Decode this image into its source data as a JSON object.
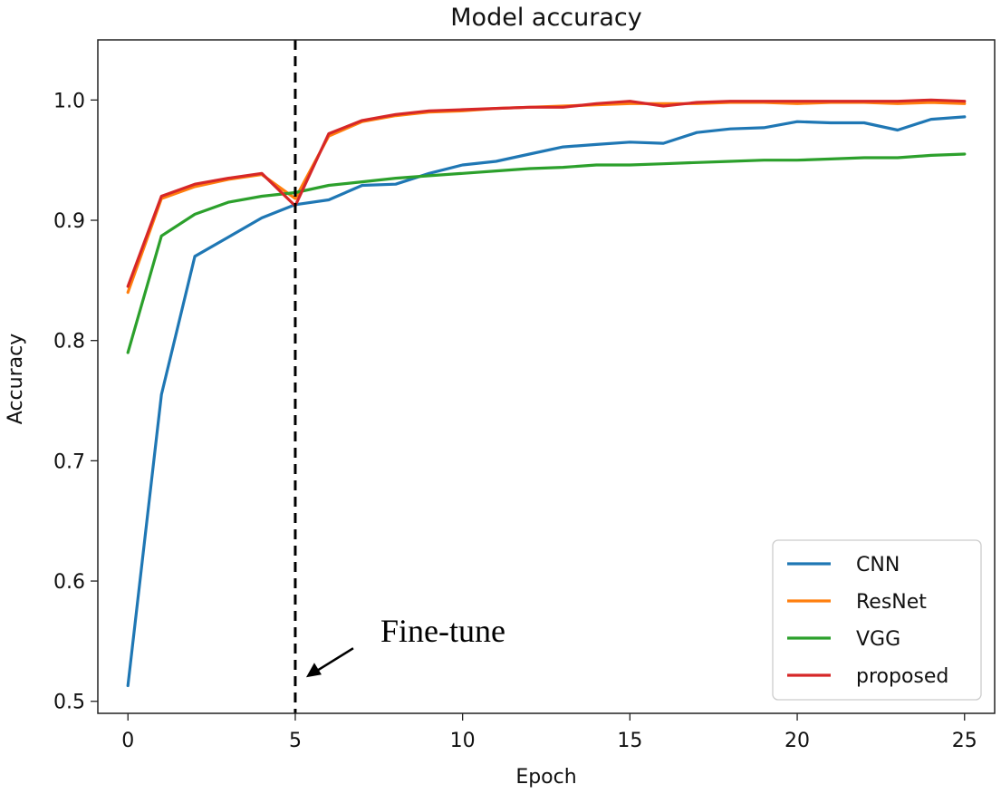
{
  "chart_data": {
    "type": "line",
    "title": "Model accuracy",
    "xlabel": "Epoch",
    "ylabel": "Accuracy",
    "xlim": [
      -0.9,
      25.9
    ],
    "ylim": [
      0.49,
      1.05
    ],
    "xticks": [
      0,
      5,
      10,
      15,
      20,
      25
    ],
    "yticks": [
      0.5,
      0.6,
      0.7,
      0.8,
      0.9,
      1.0
    ],
    "xtick_labels": [
      "0",
      "5",
      "10",
      "15",
      "20",
      "25"
    ],
    "ytick_labels": [
      "0.5",
      "0.6",
      "0.7",
      "0.8",
      "0.9",
      "1.0"
    ],
    "x": [
      0,
      1,
      2,
      3,
      4,
      5,
      6,
      7,
      8,
      9,
      10,
      11,
      12,
      13,
      14,
      15,
      16,
      17,
      18,
      19,
      20,
      21,
      22,
      23,
      24,
      25
    ],
    "series": [
      {
        "name": "CNN",
        "color": "#1f77b4",
        "values": [
          0.513,
          0.755,
          0.87,
          0.886,
          0.902,
          0.913,
          0.917,
          0.929,
          0.93,
          0.939,
          0.946,
          0.949,
          0.955,
          0.961,
          0.963,
          0.965,
          0.964,
          0.973,
          0.976,
          0.977,
          0.982,
          0.981,
          0.981,
          0.975,
          0.984,
          0.986
        ]
      },
      {
        "name": "ResNet",
        "color": "#ff7f0e",
        "values": [
          0.84,
          0.918,
          0.928,
          0.934,
          0.938,
          0.918,
          0.97,
          0.982,
          0.987,
          0.99,
          0.991,
          0.993,
          0.994,
          0.995,
          0.996,
          0.997,
          0.997,
          0.997,
          0.998,
          0.998,
          0.997,
          0.998,
          0.998,
          0.997,
          0.998,
          0.997
        ]
      },
      {
        "name": "VGG",
        "color": "#2ca02c",
        "values": [
          0.79,
          0.887,
          0.905,
          0.915,
          0.92,
          0.923,
          0.929,
          0.932,
          0.935,
          0.937,
          0.939,
          0.941,
          0.943,
          0.944,
          0.946,
          0.946,
          0.947,
          0.948,
          0.949,
          0.95,
          0.95,
          0.951,
          0.952,
          0.952,
          0.954,
          0.955
        ]
      },
      {
        "name": "proposed",
        "color": "#d62728",
        "values": [
          0.845,
          0.92,
          0.93,
          0.935,
          0.939,
          0.912,
          0.972,
          0.983,
          0.988,
          0.991,
          0.992,
          0.993,
          0.994,
          0.994,
          0.997,
          0.999,
          0.995,
          0.998,
          0.999,
          0.999,
          0.999,
          0.999,
          0.999,
          0.999,
          1.0,
          0.999
        ]
      }
    ],
    "vline": {
      "x": 5,
      "style": "dashed",
      "color": "#000000"
    },
    "annotation": {
      "text": "Fine-tune",
      "arrow_to": [
        5,
        0.52
      ]
    },
    "legend_position": "lower-right",
    "grid": false
  }
}
